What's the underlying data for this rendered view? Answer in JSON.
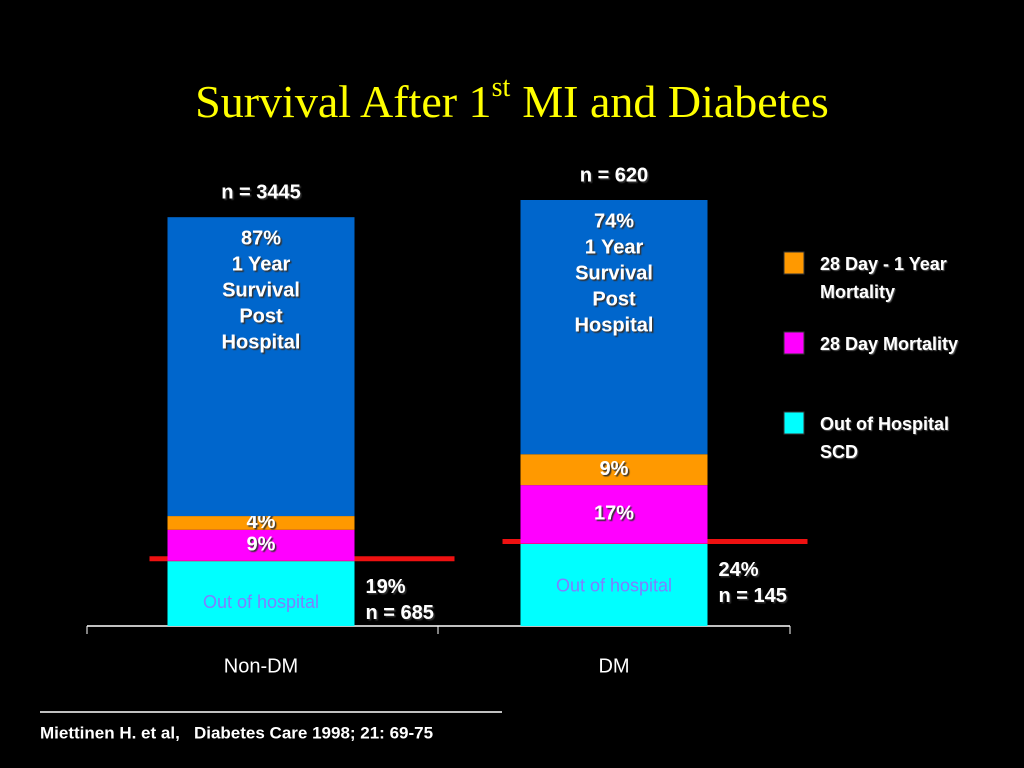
{
  "chart_data": {
    "type": "bar",
    "stacked": true,
    "title": [
      "Survival After 1",
      "st",
      "MI and Diabetes"
    ],
    "categories": [
      "Non-DM",
      "DM"
    ],
    "group_labels": [
      "n = 3445",
      "n = 620"
    ],
    "series": [
      {
        "name": "Out of Hospital SCD",
        "color": "#00ffff",
        "values": [
          19,
          24
        ],
        "value_labels": [
          "19%",
          "24%"
        ],
        "count_labels": [
          "n = 685",
          "n = 145"
        ],
        "inner_label": "Out of hospital"
      },
      {
        "name": "28 Day Mortality",
        "color": "#ff00ff",
        "values": [
          9,
          17
        ],
        "value_labels": [
          "9%",
          "17%"
        ]
      },
      {
        "name": "28 Day - 1 Year Mortality",
        "color": "#ff9900",
        "values": [
          4,
          9
        ],
        "value_labels": [
          "4%",
          "9%"
        ]
      },
      {
        "color": "#0066cc",
        "values": [
          87,
          74
        ],
        "value_labels": [
          "87%",
          "74%"
        ],
        "label_lines": [
          "1 Year",
          "Survival",
          "Post",
          "Hospital"
        ]
      }
    ],
    "legend": "right",
    "marker_line_color": "#ee1111",
    "source": "Miettinen H. et al,   Diabetes Care 1998; 21: 69-75"
  }
}
